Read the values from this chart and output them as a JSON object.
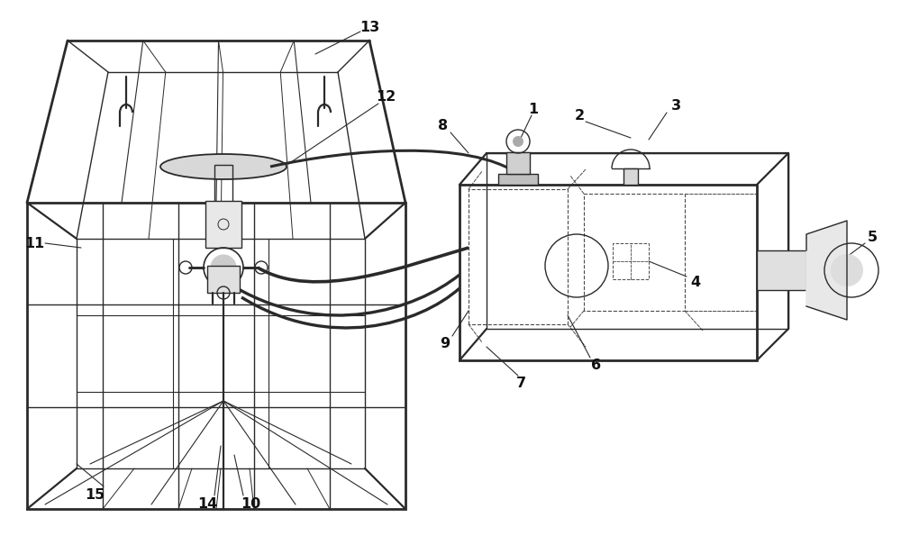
{
  "bg_color": "#ffffff",
  "line_color": "#2a2a2a",
  "dashed_color": "#4a4a4a",
  "label_color": "#111111",
  "label_fontsize": 11.5,
  "fig_width": 10.0,
  "fig_height": 6.15
}
